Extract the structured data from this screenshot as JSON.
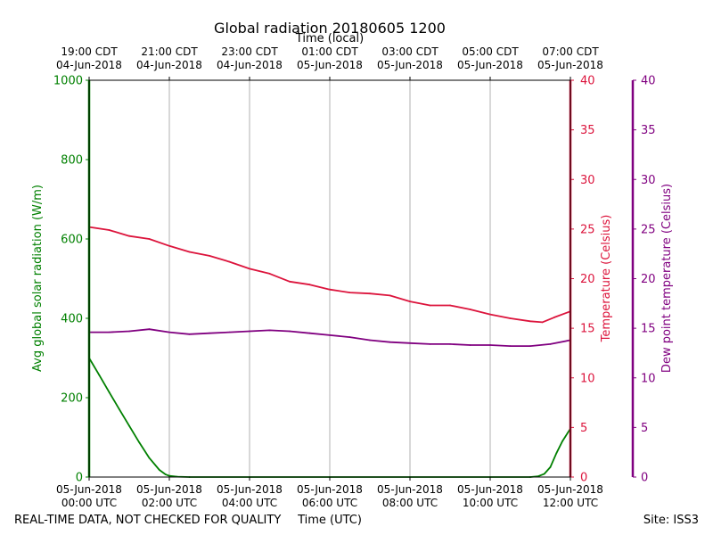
{
  "chart_data": {
    "type": "line",
    "title": "Global radiation 20180605 1200",
    "top_axis_label": "Time (local)",
    "xlabel": "Time (UTC)",
    "footer_left": "REAL-TIME DATA, NOT CHECKED FOR QUALITY",
    "footer_right": "Site: ISS3",
    "x_range_hours_utc": [
      0,
      12
    ],
    "bottom_ticks": [
      {
        "hour": 0,
        "date": "05-Jun-2018",
        "time": "00:00 UTC"
      },
      {
        "hour": 2,
        "date": "05-Jun-2018",
        "time": "02:00 UTC"
      },
      {
        "hour": 4,
        "date": "05-Jun-2018",
        "time": "04:00 UTC"
      },
      {
        "hour": 6,
        "date": "05-Jun-2018",
        "time": "06:00 UTC"
      },
      {
        "hour": 8,
        "date": "05-Jun-2018",
        "time": "08:00 UTC"
      },
      {
        "hour": 10,
        "date": "05-Jun-2018",
        "time": "10:00 UTC"
      },
      {
        "hour": 12,
        "date": "05-Jun-2018",
        "time": "12:00 UTC"
      }
    ],
    "top_ticks": [
      {
        "hour": 0,
        "time": "19:00 CDT",
        "date": "04-Jun-2018"
      },
      {
        "hour": 2,
        "time": "21:00 CDT",
        "date": "04-Jun-2018"
      },
      {
        "hour": 4,
        "time": "23:00 CDT",
        "date": "04-Jun-2018"
      },
      {
        "hour": 6,
        "time": "01:00 CDT",
        "date": "05-Jun-2018"
      },
      {
        "hour": 8,
        "time": "03:00 CDT",
        "date": "05-Jun-2018"
      },
      {
        "hour": 10,
        "time": "05:00 CDT",
        "date": "05-Jun-2018"
      },
      {
        "hour": 12,
        "time": "07:00 CDT",
        "date": "05-Jun-2018"
      }
    ],
    "axes": {
      "radiation": {
        "label": "Avg global solar radiation (W/m)",
        "ylim": [
          0,
          1000
        ],
        "ticks": [
          "0",
          "200",
          "400",
          "600",
          "800",
          "1000"
        ],
        "color": "#008000"
      },
      "temperature": {
        "label": "Temperature (Celsius)",
        "ylim": [
          0,
          40
        ],
        "ticks": [
          "0",
          "5",
          "10",
          "15",
          "20",
          "25",
          "30",
          "35",
          "40"
        ],
        "color": "#dc143c"
      },
      "dewpoint": {
        "label": "Dew point temperature (Celsius)",
        "ylim": [
          0,
          40
        ],
        "ticks": [
          "0",
          "5",
          "10",
          "15",
          "20",
          "25",
          "30",
          "35",
          "40"
        ],
        "color": "#800080"
      }
    },
    "grid": "vertical",
    "series": [
      {
        "name": "Avg global solar radiation",
        "axis": "radiation",
        "color": "#008000",
        "x": [
          0,
          0.25,
          0.5,
          0.75,
          1.0,
          1.25,
          1.5,
          1.75,
          1.9,
          2.0,
          2.2,
          2.5,
          4,
          6,
          8,
          10,
          11.0,
          11.2,
          11.35,
          11.5,
          11.65,
          11.8,
          12.0
        ],
        "y": [
          300,
          257,
          214,
          171,
          129,
          87,
          48,
          18,
          7,
          3,
          1,
          0,
          0,
          0,
          0,
          0,
          0,
          2,
          8,
          25,
          60,
          90,
          122
        ]
      },
      {
        "name": "Temperature",
        "axis": "temperature",
        "color": "#dc143c",
        "x": [
          0,
          0.5,
          1.0,
          1.5,
          2.0,
          2.5,
          3.0,
          3.5,
          4.0,
          4.5,
          5.0,
          5.5,
          6.0,
          6.5,
          7.0,
          7.5,
          8.0,
          8.5,
          9.0,
          9.5,
          10.0,
          10.5,
          11.0,
          11.3,
          11.6,
          12.0
        ],
        "y": [
          25.2,
          24.9,
          24.3,
          24.0,
          23.3,
          22.7,
          22.3,
          21.7,
          21.0,
          20.5,
          19.7,
          19.4,
          18.9,
          18.6,
          18.5,
          18.3,
          17.7,
          17.3,
          17.3,
          16.9,
          16.4,
          16.0,
          15.7,
          15.6,
          16.1,
          16.7
        ]
      },
      {
        "name": "Dew point temperature",
        "axis": "dewpoint",
        "color": "#800080",
        "x": [
          0,
          0.5,
          1.0,
          1.5,
          2.0,
          2.5,
          3.0,
          3.5,
          4.0,
          4.5,
          5.0,
          5.5,
          6.0,
          6.5,
          7.0,
          7.5,
          8.0,
          8.5,
          9.0,
          9.5,
          10.0,
          10.5,
          11.0,
          11.5,
          12.0
        ],
        "y": [
          14.6,
          14.6,
          14.7,
          14.9,
          14.6,
          14.4,
          14.5,
          14.6,
          14.7,
          14.8,
          14.7,
          14.5,
          14.3,
          14.1,
          13.8,
          13.6,
          13.5,
          13.4,
          13.4,
          13.3,
          13.3,
          13.2,
          13.2,
          13.4,
          13.8
        ]
      }
    ]
  }
}
